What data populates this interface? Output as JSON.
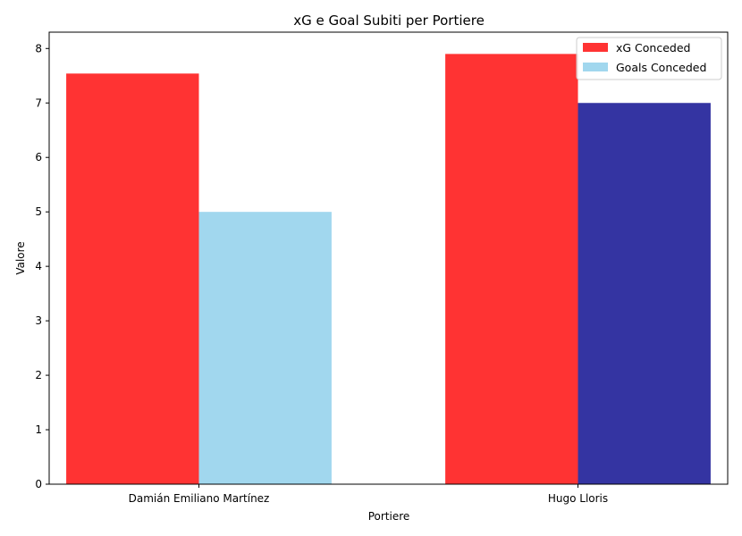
{
  "chart_data": {
    "type": "bar",
    "title": "xG e Goal Subiti per Portiere",
    "xlabel": "Portiere",
    "ylabel": "Valore",
    "categories": [
      "Damián Emiliano Martínez",
      "Hugo Lloris"
    ],
    "series": [
      {
        "name": "xG Conceded",
        "values": [
          7.54,
          7.9
        ],
        "colors": [
          "#ff3333",
          "#ff3333"
        ]
      },
      {
        "name": "Goals Conceded",
        "values": [
          5,
          7
        ],
        "colors": [
          "#a1d7ee",
          "#3434a2"
        ]
      }
    ],
    "ylim": [
      0,
      8.3
    ],
    "yticks": [
      0,
      1,
      2,
      3,
      4,
      5,
      6,
      7,
      8
    ],
    "grid": false,
    "legend_position": "top-right",
    "legend_colors": [
      "#ff3333",
      "#a1d7ee"
    ]
  }
}
